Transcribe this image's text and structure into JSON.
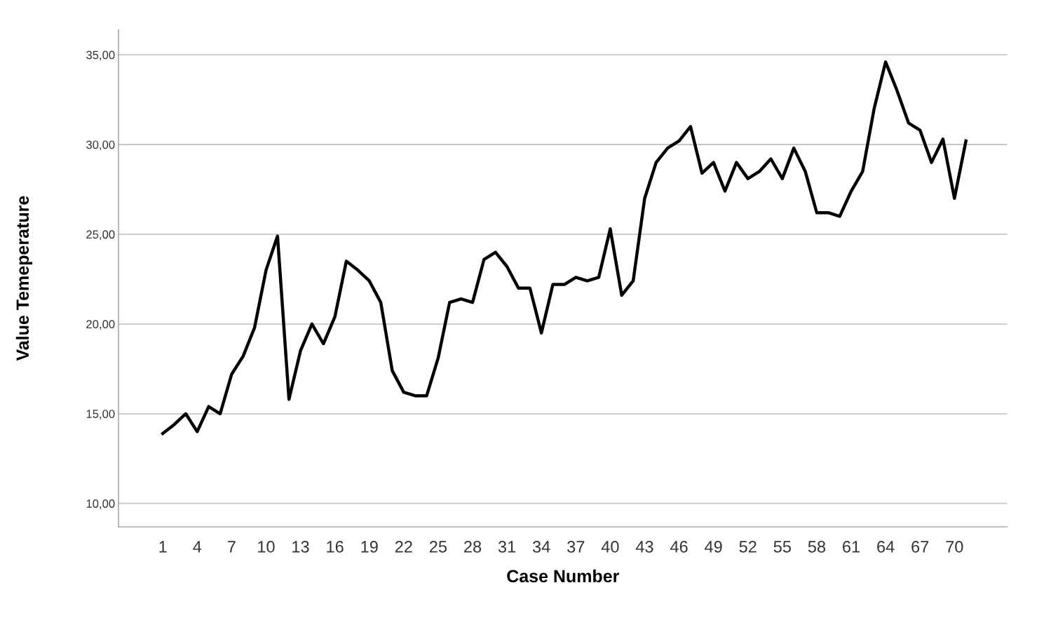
{
  "chart_data": {
    "type": "line",
    "xlabel": "Case Number",
    "ylabel": "Value Temeperature",
    "categories": [
      "1",
      null,
      null,
      "4",
      null,
      null,
      "7",
      null,
      null,
      "10",
      null,
      null,
      "13",
      null,
      null,
      "16",
      null,
      null,
      "19",
      null,
      null,
      "22",
      null,
      null,
      "25",
      null,
      null,
      "28",
      null,
      null,
      "31",
      null,
      null,
      "34",
      null,
      null,
      "37",
      null,
      null,
      "40",
      null,
      null,
      "43",
      null,
      null,
      "46",
      null,
      null,
      "49",
      null,
      null,
      "52",
      null,
      null,
      "55",
      null,
      null,
      "58",
      null,
      null,
      "61",
      null,
      null,
      "64",
      null,
      null,
      "67",
      null,
      null,
      "70",
      null
    ],
    "series": [
      {
        "color": "#000000",
        "values": [
          13.9,
          14.4,
          15.0,
          14.0,
          15.4,
          15.0,
          17.2,
          18.2,
          19.8,
          23.0,
          24.9,
          15.8,
          18.5,
          20.0,
          18.9,
          20.4,
          23.5,
          23.0,
          22.4,
          21.2,
          17.4,
          16.2,
          16.0,
          16.0,
          18.1,
          21.2,
          21.4,
          21.2,
          23.6,
          24.0,
          23.2,
          22.0,
          22.0,
          19.5,
          22.2,
          22.2,
          22.6,
          22.4,
          22.6,
          25.3,
          21.6,
          22.4,
          27.0,
          29.0,
          29.8,
          30.2,
          31.0,
          28.4,
          29.0,
          27.4,
          29.0,
          28.1,
          28.5,
          29.2,
          28.1,
          29.8,
          28.5,
          26.2,
          26.2,
          26.0,
          27.4,
          28.5,
          32.0,
          34.6,
          33.0,
          31.2,
          30.8,
          29.0,
          30.3,
          27.0,
          30.2
        ]
      }
    ],
    "ylim": [
      8.7,
      36.4
    ],
    "yticks": [
      {
        "value": 10,
        "label": "10,00"
      },
      {
        "value": 15,
        "label": "15,00"
      },
      {
        "value": 20,
        "label": "20,00"
      },
      {
        "value": 25,
        "label": "25,00"
      },
      {
        "value": 30,
        "label": "30,00"
      },
      {
        "value": 35,
        "label": "35,00"
      }
    ],
    "grid": "y",
    "marker": "none",
    "line_style": "solid"
  }
}
